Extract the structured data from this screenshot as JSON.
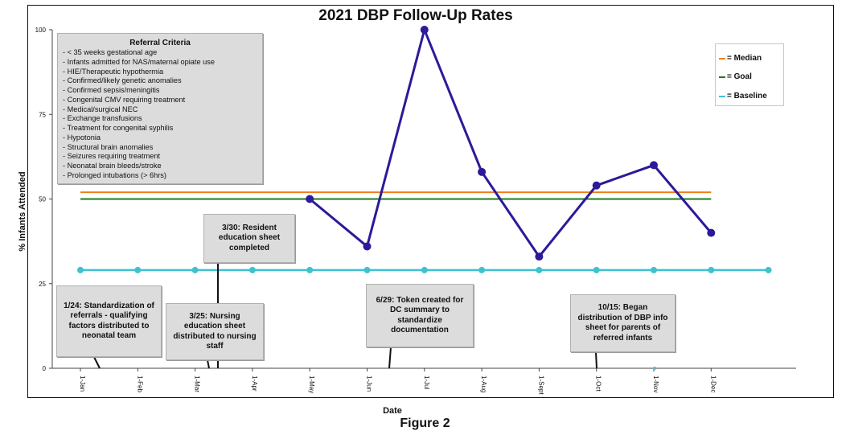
{
  "chart_data": {
    "type": "line",
    "title": "2021 DBP Follow-Up Rates",
    "xlabel": "Date",
    "ylabel": "% Infants Attended",
    "ylim": [
      0,
      100
    ],
    "yticks": [
      0,
      25,
      50,
      75,
      100
    ],
    "categories": [
      "1-Jan",
      "1-Feb",
      "1-Mar",
      "1-Apr",
      "1-May",
      "1-Jun",
      "1-Jul",
      "1-Aug",
      "1-Sept",
      "1-Oct",
      "1-Nov",
      "1-Dec"
    ],
    "series": [
      {
        "name": "",
        "color": "#2b1a9a",
        "values": [
          null,
          null,
          null,
          null,
          50,
          36,
          100,
          58,
          33,
          54,
          60,
          40
        ]
      },
      {
        "name": "Median",
        "color": "#f07f1b",
        "value": 52
      },
      {
        "name": "Goal",
        "color": "#1f7a1f",
        "value": 50
      },
      {
        "name": "Baseline",
        "color": "#3fc2d0",
        "value": 29
      }
    ],
    "legend": {
      "position": "top-right",
      "items": [
        {
          "label": "= Median",
          "color": "#f07f1b"
        },
        {
          "label": "= Goal",
          "color": "#1f7a1f"
        },
        {
          "label": "= Baseline",
          "color": "#3fc2d0"
        }
      ]
    },
    "referral_criteria": {
      "title": "Referral Criteria",
      "items": [
        "- < 35 weeks gestational age",
        "- Infants admitted for NAS/maternal opiate use",
        "-  HIE/Therapeutic hypothermia",
        "- Confirmed/likely genetic anomalies",
        "- Confirmed sepsis/meningitis",
        "- Congenital CMV requiring treatment",
        "- Medical/surgical NEC",
        "- Exchange transfusions",
        "- Treatment for congenital syphilis",
        "- Hypotonia",
        "- Structural brain anomalies",
        "- Seizures requiring treatment",
        "- Neonatal brain bleeds/stroke",
        "- Prolonged intubations (> 6hrs)"
      ]
    },
    "annotations": [
      {
        "id": "a1",
        "text": "1/24: Standardization of referrals - qualifying factors distributed to neonatal team"
      },
      {
        "id": "a2",
        "text": "3/25: Nursing education sheet distributed to nursing staff"
      },
      {
        "id": "a3",
        "text": "3/30: Resident education sheet completed"
      },
      {
        "id": "a4",
        "text": "6/29: Token created for DC summary to standardize documentation"
      },
      {
        "id": "a5",
        "text": "10/15: Began distribution of DBP info sheet for parents of referred infants"
      }
    ],
    "grid": false
  },
  "figure_label": "Figure 2"
}
